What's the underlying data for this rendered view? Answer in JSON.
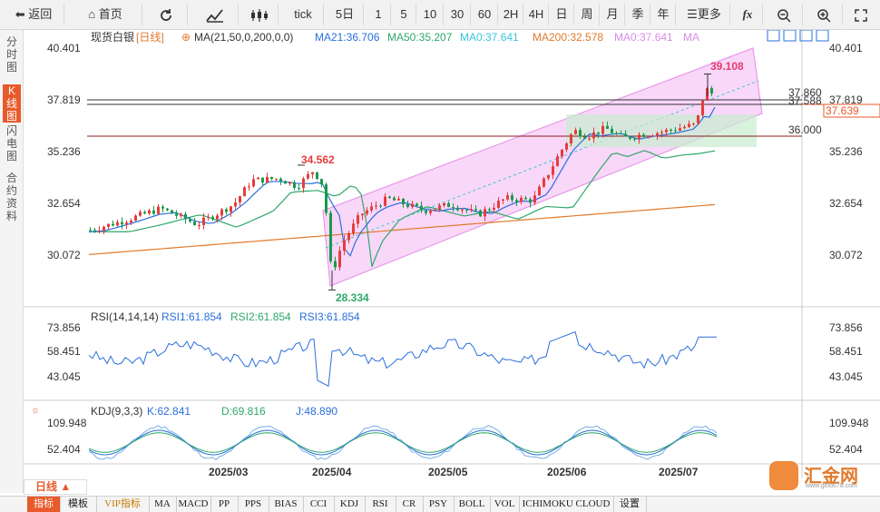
{
  "toolbar": {
    "back": "返回",
    "home": "首页",
    "tick": "tick",
    "five_day": "5日",
    "periods": [
      "1",
      "5",
      "10",
      "30",
      "60",
      "2H",
      "4H",
      "日",
      "周",
      "月",
      "季",
      "年"
    ],
    "more": "更多",
    "fx": "fx"
  },
  "leftnav": {
    "fenshi": [
      "分",
      "时",
      "图"
    ],
    "kline": [
      "K",
      "线",
      "图"
    ],
    "flash": [
      "闪",
      "电",
      "图"
    ],
    "contract": [
      "合",
      "约",
      "资",
      "料"
    ]
  },
  "main": {
    "symbol": "现货白银",
    "period_tag": "[日线]",
    "ma_header": "MA(21,50,0,200,0,0)",
    "ma21": "MA21:36.706",
    "ma50": "MA50:35.207",
    "ma0a": "MA0:37.641",
    "ma200": "MA200:32.578",
    "ma0b": "MA0:37.641",
    "ma_end": "MA",
    "y_labels": [
      "40.401",
      "37.819",
      "35.236",
      "32.654",
      "30.072"
    ],
    "high_label": "39.108",
    "low_label": "28.334",
    "peak_label": "34.562",
    "line_label_1": "37.860",
    "line_label_2": "37.588",
    "line_label_3": "36.000",
    "current_price": "37.639"
  },
  "rsi": {
    "header": "RSI(14,14,14)",
    "rsi1": "RSI1:61.854",
    "rsi2": "RSI2:61.854",
    "rsi3": "RSI3:61.854",
    "y_labels": [
      "73.856",
      "58.451",
      "43.045"
    ]
  },
  "kdj": {
    "header": "KDJ(9,3,3)",
    "k": "K:62.841",
    "d": "D:69.816",
    "j": "J:48.890",
    "y_labels": [
      "109.948",
      "52.404"
    ]
  },
  "x_axis": [
    "2025/03",
    "2025/04",
    "2025/05",
    "2025/06",
    "2025/07"
  ],
  "period_selector": "日线 ▲",
  "bottom_tabs": [
    "指标",
    "模板",
    "VIP指标",
    "MA",
    "MACD",
    "PP",
    "PPS",
    "BIAS",
    "CCI",
    "KDJ",
    "RSI",
    "CR",
    "PSY",
    "BOLL",
    "VOL",
    "ICHIMOKU CLOUD",
    "设置"
  ],
  "logo": {
    "text": "汇金网",
    "url": "www.gold678.com"
  },
  "colors": {
    "up": "#e63c3c",
    "down": "#1a9a4a",
    "ma21": "#2a6fdb",
    "ma50": "#2fa86a",
    "ma200": "#e07a2b",
    "channel": "#ee9cf0",
    "accent": "#e85a2b"
  }
}
